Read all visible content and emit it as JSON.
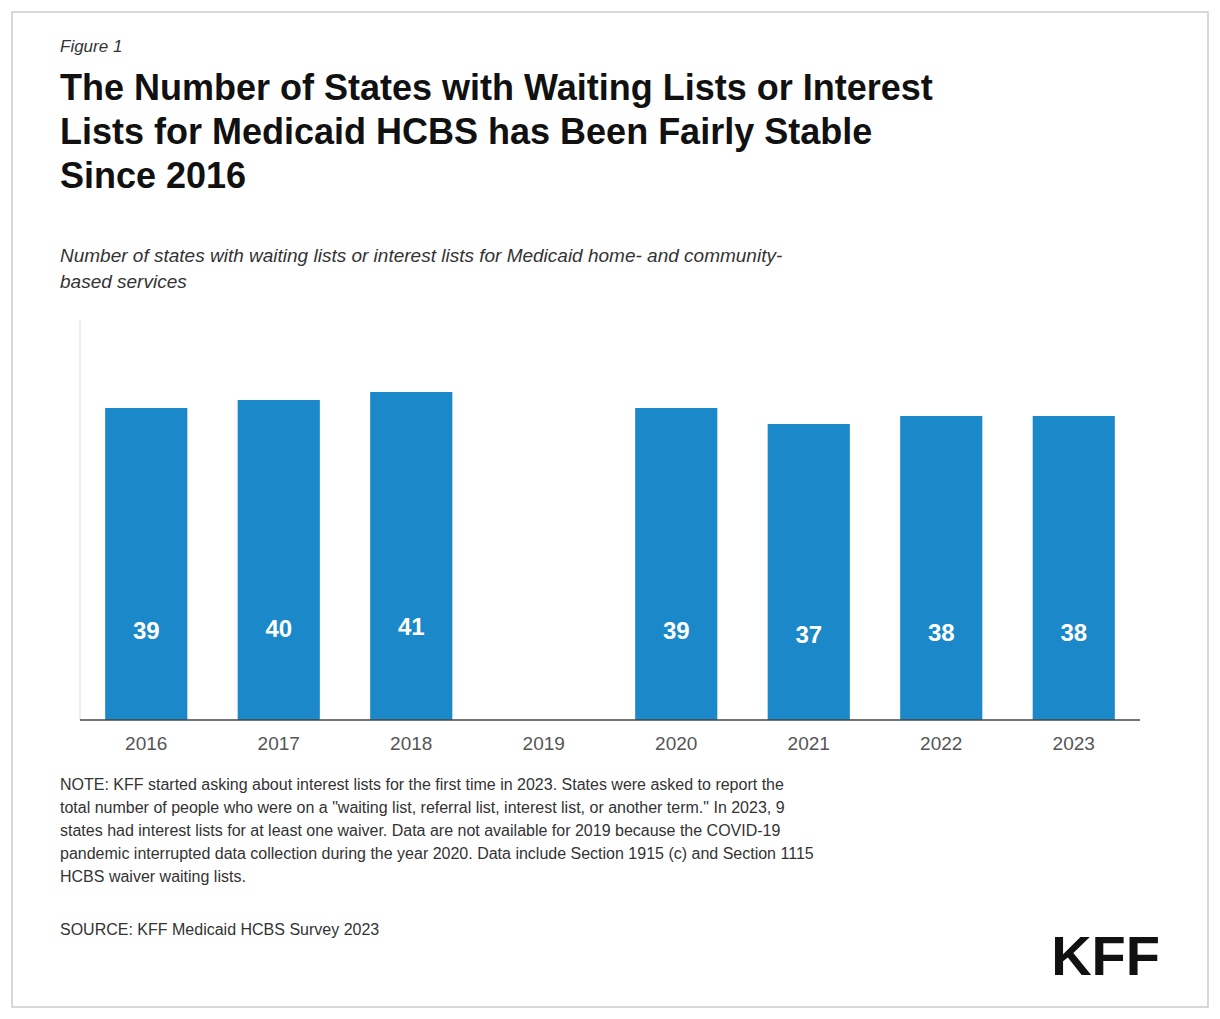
{
  "chart_data": {
    "type": "bar",
    "title": "The Number of States with Waiting Lists or Interest\nLists for Medicaid HCBS has Been Fairly Stable\nSince 2016",
    "subtitle": "Number of states with waiting lists or interest lists for Medicaid home- and community-\nbased services",
    "categories": [
      "2016",
      "2017",
      "2018",
      "2019",
      "2020",
      "2021",
      "2022",
      "2023"
    ],
    "values": [
      39,
      40,
      41,
      null,
      39,
      37,
      38,
      38
    ],
    "color": "#1a88c9",
    "ylim": [
      0,
      50
    ],
    "data_labels": true,
    "tick_labels": "x",
    "grid": false,
    "annotations": [
      "Figure 1",
      "NOTE: KFF started asking about interest lists for the first time in 2023. States were asked to report the\ntotal number of people who were on a \"waiting list, referral list, interest list, or another term.\" In 2023, 9\nstates had interest lists for at least one waiver. Data are not available for 2019 because the COVID-19\npandemic interrupted data collection during the year 2020. Data include Section 1915 (c) and Section 1115\nHCBS waiver waiting lists.",
      "SOURCE: KFF Medicaid HCBS Survey 2023",
      "KFF"
    ]
  }
}
